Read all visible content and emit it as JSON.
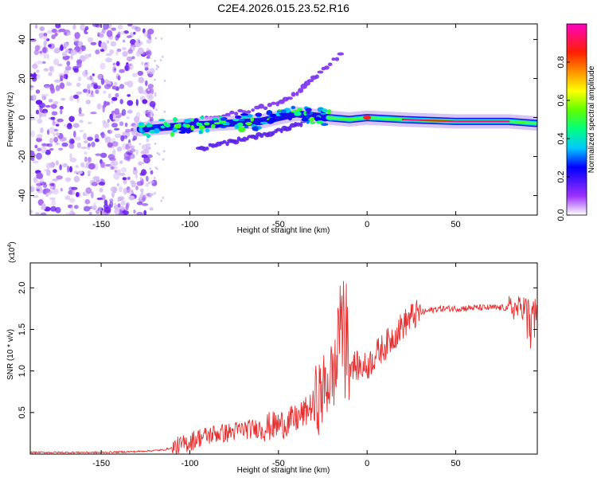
{
  "title": "C2E4.2026.015.23.52.R16",
  "chart_data": [
    {
      "type": "heatmap",
      "name": "spectrogram",
      "xlabel": "Height of straight line (km)",
      "ylabel": "Frequency (Hz)",
      "xlim": [
        -190,
        96
      ],
      "ylim": [
        -50,
        48
      ],
      "xticks": [
        -150,
        -100,
        -50,
        0,
        50
      ],
      "yticks": [
        -40,
        -20,
        0,
        20,
        40
      ],
      "colorbar": {
        "label": "Normalized spectral amplitude",
        "range": [
          0.0,
          1.0
        ],
        "ticks": [
          0.0,
          0.2,
          0.4,
          0.6,
          0.8
        ],
        "tick_labels": [
          "0.0",
          "0.2",
          "0.4",
          "0.6",
          "0.8"
        ]
      },
      "features": [
        {
          "name": "noise-region",
          "x_range": [
            -190,
            -128
          ],
          "y_range": [
            -50,
            48
          ],
          "amplitude": 0.15
        },
        {
          "name": "main-trace",
          "points": [
            [
              -128,
              -6
            ],
            [
              -100,
              -4
            ],
            [
              -80,
              -3
            ],
            [
              -60,
              -2
            ],
            [
              -40,
              2
            ],
            [
              -22,
              0
            ],
            [
              -10,
              -1
            ],
            [
              0,
              0
            ],
            [
              20,
              -1
            ],
            [
              50,
              -2
            ],
            [
              80,
              -2
            ],
            [
              95,
              -3
            ]
          ],
          "amplitude": 0.5
        },
        {
          "name": "upper-branch",
          "points": [
            [
              -100,
              -2
            ],
            [
              -75,
              2
            ],
            [
              -55,
              6
            ],
            [
              -40,
              12
            ],
            [
              -30,
              20
            ],
            [
              -22,
              27
            ],
            [
              -15,
              32
            ]
          ],
          "amplitude": 0.15
        },
        {
          "name": "lower-branch",
          "points": [
            [
              -95,
              -16
            ],
            [
              -75,
              -12
            ],
            [
              -55,
              -8
            ],
            [
              -40,
              -4
            ],
            [
              -25,
              2
            ]
          ],
          "amplitude": 0.2
        }
      ]
    },
    {
      "type": "line",
      "name": "snr",
      "xlabel": "Height of straight line (km)",
      "ylabel": "SNR (10 * v/v)",
      "exponent_label": "(x10",
      "exponent": "4",
      "exponent_close": ")",
      "xlim": [
        -190,
        96
      ],
      "ylim": [
        0,
        2.3
      ],
      "xticks": [
        -150,
        -100,
        -50,
        0,
        50
      ],
      "yticks": [
        0.5,
        1.0,
        1.5,
        2.0
      ],
      "ytick_labels": [
        "0.5",
        "1.0",
        "1.5",
        "2.0"
      ],
      "color": "#e53030",
      "x": [
        -190,
        -150,
        -130,
        -115,
        -105,
        -100,
        -95,
        -90,
        -85,
        -80,
        -75,
        -70,
        -65,
        -60,
        -55,
        -50,
        -45,
        -40,
        -35,
        -30,
        -25,
        -20,
        -15,
        -10,
        -5,
        0,
        5,
        10,
        15,
        20,
        25,
        30,
        40,
        50,
        60,
        70,
        80,
        85,
        90,
        96
      ],
      "values": [
        0.02,
        0.02,
        0.03,
        0.05,
        0.1,
        0.15,
        0.2,
        0.22,
        0.25,
        0.25,
        0.27,
        0.3,
        0.3,
        0.32,
        0.33,
        0.35,
        0.38,
        0.42,
        0.5,
        0.6,
        0.75,
        0.95,
        1.05,
        1.1,
        1.05,
        1.05,
        1.2,
        1.3,
        1.42,
        1.55,
        1.65,
        1.7,
        1.75,
        1.75,
        1.76,
        1.76,
        1.76,
        1.75,
        1.78,
        1.75
      ]
    }
  ]
}
